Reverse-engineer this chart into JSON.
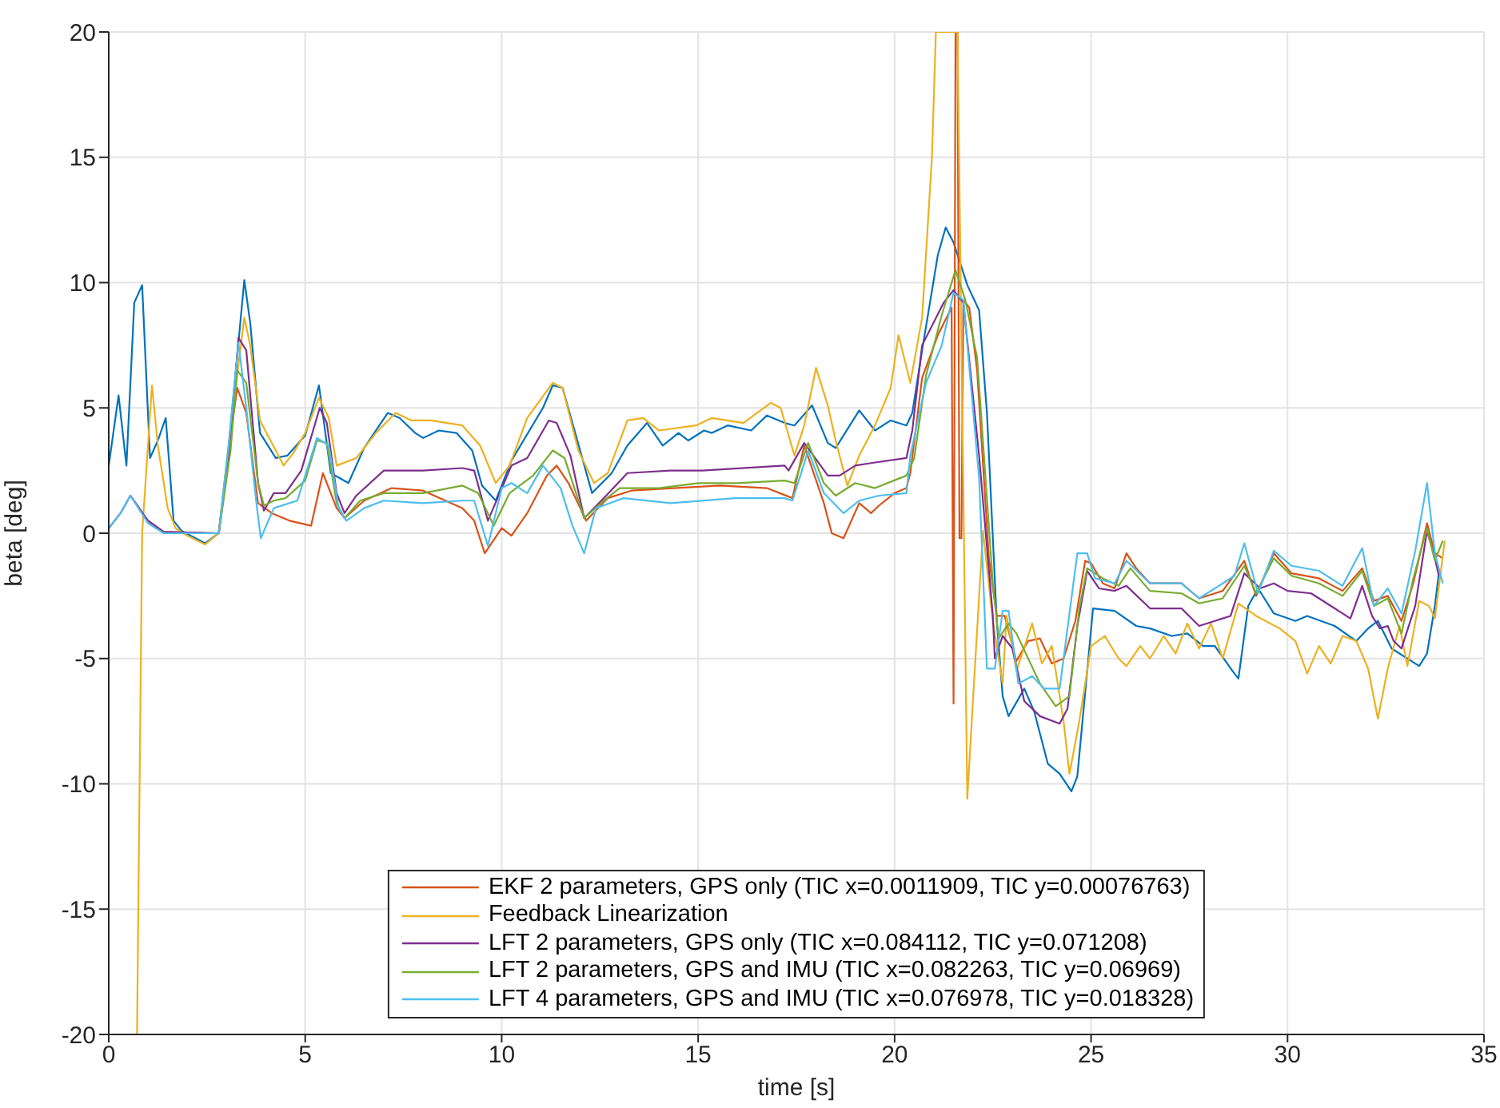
{
  "chart_data": {
    "type": "line",
    "xlabel": "time [s]",
    "ylabel": "beta [deg]",
    "xlim": [
      0,
      35
    ],
    "xticks": [
      0,
      5,
      10,
      15,
      20,
      25,
      30,
      35
    ],
    "ylim": [
      -20,
      20
    ],
    "yticks": [
      -20,
      -15,
      -10,
      -5,
      0,
      5,
      10,
      15,
      20
    ],
    "grid": true,
    "legend": "bottom",
    "marker": "none",
    "line_style": "solid",
    "series": [
      {
        "color": "#0072bd",
        "x": [
          0,
          0.25,
          0.45,
          0.65,
          0.85,
          1.05,
          1.25,
          1.45,
          1.65,
          1.85,
          2.45,
          2.8,
          3.05,
          3.45,
          3.6,
          3.85,
          4.25,
          4.55,
          5.0,
          5.35,
          5.65,
          6.1,
          6.5,
          7.1,
          7.4,
          7.8,
          8.0,
          8.4,
          8.85,
          9.25,
          9.5,
          9.85,
          10.25,
          11.05,
          11.3,
          11.55,
          12.3,
          12.8,
          13.2,
          13.7,
          14.1,
          14.5,
          14.75,
          15.15,
          15.35,
          15.75,
          16.35,
          16.75,
          17.2,
          17.45,
          17.9,
          18.3,
          18.5,
          19.1,
          19.5,
          19.9,
          20.3,
          20.45,
          20.7,
          21.1,
          21.3,
          21.5,
          21.85,
          22.15,
          22.35,
          22.6,
          22.75,
          22.9,
          23.3,
          23.55,
          23.9,
          24.2,
          24.5,
          24.65,
          25.05,
          25.6,
          26.15,
          26.5,
          27.05,
          27.45,
          27.85,
          28.15,
          28.6,
          28.75,
          29.0,
          29.25,
          29.65,
          30.2,
          30.5,
          31.2,
          31.75,
          32.05,
          32.3,
          32.65,
          33.35,
          33.55,
          33.75,
          33.85
        ],
        "values": [
          2.7,
          5.5,
          2.7,
          9.2,
          9.9,
          3.0,
          3.7,
          4.6,
          0.5,
          0.1,
          -0.4,
          0,
          3.4,
          10.1,
          8.4,
          4.0,
          3.0,
          3.1,
          3.9,
          5.9,
          2.4,
          2.0,
          3.4,
          4.8,
          4.6,
          4.0,
          3.8,
          4.1,
          4.0,
          3.3,
          1.9,
          1.3,
          2.9,
          5.0,
          5.9,
          5.8,
          1.6,
          2.4,
          3.5,
          4.4,
          3.5,
          4.0,
          3.7,
          4.1,
          4.0,
          4.3,
          4.1,
          4.7,
          4.4,
          4.3,
          5.1,
          3.6,
          3.4,
          4.9,
          4.1,
          4.5,
          4.3,
          4.8,
          7.3,
          11.1,
          12.2,
          11.6,
          9.9,
          8.9,
          4.8,
          -3.5,
          -6.5,
          -7.3,
          -6.2,
          -7.1,
          -9.2,
          -9.6,
          -10.3,
          -9.7,
          -3.0,
          -3.1,
          -3.7,
          -3.8,
          -4.1,
          -4.0,
          -4.5,
          -4.5,
          -5.5,
          -5.8,
          -2.9,
          -2.2,
          -3.2,
          -3.5,
          -3.3,
          -3.7,
          -4.3,
          -3.8,
          -3.5,
          -4.6,
          -5.3,
          -4.8,
          -2.9,
          -1.6
        ]
      },
      {
        "name": "EKF 2 parameters, GPS only (TIC x=0.0011909, TIC y=0.00076763)",
        "color": "#d95319",
        "x": [
          1.0,
          1.4,
          2.8,
          3.05,
          3.27,
          3.5,
          3.8,
          4.15,
          4.6,
          5.15,
          5.45,
          5.8,
          6.0,
          6.5,
          7.2,
          8.0,
          9.0,
          9.3,
          9.57,
          10.0,
          10.25,
          10.65,
          11.15,
          11.4,
          11.7,
          12.15,
          12.7,
          13.3,
          15.55,
          16.75,
          17.4,
          17.7,
          18.2,
          18.4,
          18.7,
          19.1,
          19.4,
          19.6,
          20.0,
          20.3,
          20.4,
          20.7,
          21.1,
          21.45,
          21.5,
          21.55,
          21.6,
          21.65,
          21.7,
          21.75,
          21.9,
          22.1,
          22.4,
          22.6,
          22.8,
          23.1,
          23.4,
          23.7,
          24.0,
          24.3,
          24.6,
          24.85,
          25.0,
          25.3,
          25.6,
          25.9,
          26.15,
          26.5,
          27.3,
          27.75,
          28.35,
          28.9,
          29.2,
          29.65,
          30.1,
          30.8,
          31.4,
          31.9,
          32.2,
          32.55,
          32.9,
          33.2,
          33.55,
          33.75,
          33.95
        ],
        "values": [
          0.5,
          0.05,
          0,
          3.3,
          5.8,
          4.8,
          1.2,
          0.8,
          0.5,
          0.3,
          2.4,
          1.0,
          0.6,
          1.3,
          1.8,
          1.7,
          1.0,
          0.5,
          -0.8,
          0.2,
          -0.1,
          0.8,
          2.3,
          2.7,
          2.0,
          0.5,
          1.4,
          1.7,
          1.9,
          1.8,
          1.4,
          3.5,
          1.2,
          0,
          -0.2,
          1.2,
          0.8,
          1.1,
          1.6,
          1.8,
          2.4,
          6.2,
          7.9,
          9.0,
          -6.8,
          20,
          20,
          -0.2,
          -0.2,
          9.3,
          9.0,
          6.5,
          -1.0,
          -3.3,
          -3.3,
          -5.1,
          -4.3,
          -4.2,
          -5.2,
          -5.0,
          -3.5,
          -1.1,
          -1.2,
          -2.0,
          -2.2,
          -0.8,
          -1.4,
          -2.0,
          -2.0,
          -2.6,
          -2.3,
          -1.1,
          -2.5,
          -0.8,
          -1.6,
          -1.8,
          -2.3,
          -1.4,
          -2.7,
          -2.5,
          -3.5,
          -2.0,
          0.4,
          -0.8,
          -1.0
        ]
      },
      {
        "name": "Feedback Linearization",
        "color": "#edb120",
        "x": [
          0.72,
          0.85,
          1.1,
          1.25,
          1.5,
          1.7,
          2.0,
          2.45,
          2.8,
          3.05,
          3.45,
          3.6,
          3.85,
          4.45,
          4.7,
          5.0,
          5.35,
          5.6,
          5.8,
          6.3,
          6.8,
          7.3,
          7.7,
          8.2,
          9.0,
          9.45,
          9.85,
          10.2,
          10.65,
          11.3,
          11.55,
          11.95,
          12.35,
          12.7,
          13.2,
          13.6,
          14.0,
          14.95,
          15.35,
          16.15,
          16.85,
          17.1,
          17.45,
          17.7,
          18.0,
          18.3,
          18.5,
          18.8,
          19.1,
          19.5,
          19.9,
          20.1,
          20.4,
          20.7,
          20.95,
          21.05,
          21.6,
          21.85,
          22.0,
          22.25,
          22.5,
          22.75,
          22.85,
          23.1,
          23.5,
          23.75,
          24.0,
          24.3,
          24.45,
          24.7,
          25.0,
          25.35,
          25.7,
          25.9,
          26.25,
          26.5,
          26.85,
          27.15,
          27.45,
          27.75,
          28.05,
          28.35,
          28.75,
          29.2,
          29.8,
          30.2,
          30.5,
          30.8,
          31.1,
          31.4,
          31.75,
          32.05,
          32.3,
          32.55,
          32.85,
          33.05,
          33.35,
          33.6,
          33.75,
          34.0
        ],
        "values": [
          -20,
          0,
          5.9,
          3.5,
          1.0,
          0.2,
          -0.1,
          -0.45,
          0,
          3.5,
          8.6,
          7.5,
          4.5,
          2.7,
          3.2,
          4.0,
          5.4,
          4.6,
          2.7,
          3.0,
          4.0,
          4.8,
          4.5,
          4.5,
          4.3,
          3.5,
          2.0,
          2.7,
          4.6,
          6.0,
          5.8,
          3.3,
          2.0,
          2.4,
          4.5,
          4.6,
          4.1,
          4.3,
          4.6,
          4.4,
          5.2,
          5.0,
          3.1,
          4.3,
          6.6,
          5.1,
          3.7,
          1.9,
          3.1,
          4.3,
          5.8,
          7.9,
          6.0,
          8.6,
          15,
          20,
          20,
          -10.6,
          -6.5,
          0.1,
          -3.5,
          -6.0,
          -3.3,
          -5.5,
          -3.6,
          -5.2,
          -4.5,
          -7.5,
          -9.6,
          -7.5,
          -4.5,
          -4.1,
          -5.0,
          -5.3,
          -4.5,
          -5.0,
          -4.1,
          -4.8,
          -3.6,
          -4.6,
          -3.6,
          -5.0,
          -2.8,
          -3.3,
          -3.8,
          -4.3,
          -5.6,
          -4.5,
          -5.2,
          -4.1,
          -4.3,
          -5.4,
          -7.4,
          -5.4,
          -3.7,
          -5.3,
          -2.7,
          -2.9,
          -3.4,
          -0.3
        ]
      },
      {
        "name": "LFT 2 parameters, GPS only (TIC x=0.084112, TIC y=0.071208)",
        "color": "#7e2f8e",
        "x": [
          0,
          0.3,
          0.55,
          1.0,
          1.4,
          2.8,
          3.1,
          3.3,
          3.5,
          3.8,
          3.95,
          4.2,
          4.5,
          4.9,
          5.37,
          5.55,
          5.8,
          6.0,
          6.3,
          7.0,
          8.0,
          9.0,
          9.3,
          9.65,
          10.25,
          10.65,
          11.2,
          11.4,
          11.75,
          12.1,
          12.6,
          13.2,
          14.3,
          15.1,
          17.2,
          17.3,
          17.7,
          18.3,
          18.6,
          19.0,
          19.4,
          20.3,
          20.45,
          20.7,
          21.25,
          21.5,
          21.75,
          22.15,
          22.5,
          22.55,
          22.75,
          23.0,
          23.3,
          23.7,
          24.2,
          24.4,
          24.65,
          24.9,
          25.2,
          25.6,
          25.9,
          26.5,
          27.3,
          27.75,
          28.55,
          28.9,
          29.3,
          29.65,
          30.0,
          30.6,
          31.2,
          31.6,
          31.9,
          32.15,
          32.35,
          32.55,
          32.7,
          32.9,
          33.25,
          33.55,
          33.75,
          33.85
        ],
        "values": [
          0.2,
          0.8,
          1.5,
          0.5,
          0.05,
          0,
          3.5,
          7.8,
          7.3,
          2.0,
          0.9,
          1.6,
          1.6,
          2.5,
          5.0,
          4.4,
          1.6,
          0.8,
          1.5,
          2.5,
          2.5,
          2.6,
          2.5,
          0.5,
          2.7,
          3.0,
          4.5,
          4.4,
          3.1,
          0.6,
          1.4,
          2.4,
          2.5,
          2.5,
          2.7,
          2.5,
          3.6,
          2.3,
          2.3,
          2.7,
          2.8,
          3.0,
          4.1,
          7.5,
          9.2,
          9.7,
          9.2,
          3.1,
          -3.3,
          -5.0,
          -4.1,
          -4.6,
          -6.7,
          -7.3,
          -7.6,
          -7.0,
          -3.7,
          -1.5,
          -2.2,
          -2.3,
          -2.1,
          -3.0,
          -3.0,
          -3.7,
          -3.3,
          -1.6,
          -2.2,
          -2.0,
          -2.3,
          -2.4,
          -3.0,
          -3.4,
          -2.1,
          -3.3,
          -3.8,
          -3.7,
          -4.3,
          -4.6,
          -2.9,
          0.1,
          -1.0,
          -1.7
        ]
      },
      {
        "name": "LFT 2 parameters, GPS and IMU (TIC x=0.082263, TIC y=0.06969)",
        "color": "#77ac30",
        "x": [
          1.4,
          2.8,
          3.1,
          3.27,
          3.5,
          3.8,
          3.95,
          4.2,
          4.5,
          5.0,
          5.3,
          5.55,
          5.8,
          6.0,
          6.4,
          7.0,
          8.0,
          9.0,
          9.4,
          9.8,
          10.2,
          10.8,
          11.3,
          11.6,
          12.1,
          12.6,
          13.0,
          14.0,
          15.0,
          16.0,
          17.2,
          17.45,
          17.8,
          18.2,
          18.5,
          19.0,
          19.5,
          20.3,
          20.5,
          20.8,
          21.2,
          21.55,
          21.8,
          22.1,
          22.5,
          22.65,
          22.9,
          23.1,
          23.7,
          24.1,
          24.45,
          24.7,
          24.9,
          25.3,
          25.7,
          26.0,
          26.5,
          27.3,
          27.75,
          28.35,
          28.9,
          29.2,
          29.65,
          30.1,
          30.8,
          31.4,
          31.9,
          32.2,
          32.55,
          32.9,
          33.2,
          33.55,
          33.75,
          33.95
        ],
        "values": [
          0,
          0,
          3.3,
          6.5,
          6.0,
          2.0,
          1.1,
          1.3,
          1.4,
          2.1,
          3.7,
          3.6,
          1.2,
          0.6,
          1.3,
          1.6,
          1.6,
          1.9,
          1.6,
          0.3,
          1.6,
          2.3,
          3.3,
          3.0,
          0.6,
          1.3,
          1.8,
          1.8,
          2.0,
          2.0,
          2.1,
          2.0,
          3.6,
          2.0,
          1.5,
          2.0,
          1.8,
          2.3,
          3.0,
          6.3,
          8.7,
          10.5,
          9.3,
          7.0,
          -2.0,
          -4.2,
          -3.6,
          -4.0,
          -6.0,
          -6.9,
          -6.5,
          -3.0,
          -1.4,
          -1.8,
          -2.1,
          -1.4,
          -2.3,
          -2.4,
          -2.8,
          -2.6,
          -1.3,
          -2.4,
          -1.0,
          -1.7,
          -2.0,
          -2.5,
          -1.5,
          -2.9,
          -2.6,
          -4.0,
          -1.8,
          0.2,
          -1.1,
          -0.3
        ]
      },
      {
        "name": "LFT 4 parameters, GPS and IMU (TIC x=0.076978, TIC y=0.018328)",
        "color": "#4dbeee",
        "x": [
          0,
          0.3,
          0.55,
          1.0,
          1.4,
          2.8,
          3.05,
          3.3,
          3.5,
          3.75,
          3.87,
          4.2,
          4.8,
          5.3,
          5.6,
          5.85,
          6.05,
          6.5,
          7.0,
          8.0,
          9.0,
          9.3,
          9.65,
          10.0,
          10.25,
          10.65,
          11.05,
          11.5,
          11.8,
          12.1,
          12.4,
          13.1,
          14.3,
          15.95,
          17.2,
          17.4,
          17.8,
          18.2,
          18.7,
          19.1,
          19.6,
          20.3,
          20.4,
          20.8,
          21.2,
          21.5,
          21.75,
          22.15,
          22.35,
          22.55,
          22.75,
          22.9,
          23.15,
          23.5,
          23.8,
          24.2,
          24.65,
          24.9,
          25.1,
          25.6,
          25.9,
          26.5,
          27.3,
          27.75,
          28.35,
          28.65,
          28.9,
          29.25,
          29.65,
          30.1,
          30.8,
          31.4,
          31.9,
          32.2,
          32.55,
          32.9,
          33.25,
          33.55,
          33.75,
          33.95
        ],
        "values": [
          0.2,
          0.8,
          1.5,
          0.4,
          0,
          0,
          3.5,
          7.6,
          5.0,
          1.3,
          -0.2,
          1.0,
          1.3,
          3.8,
          3.5,
          1.0,
          0.5,
          1.0,
          1.3,
          1.2,
          1.3,
          1.3,
          -0.5,
          1.8,
          2.0,
          1.6,
          2.7,
          1.8,
          0.3,
          -0.8,
          1.0,
          1.4,
          1.2,
          1.4,
          1.4,
          1.3,
          3.3,
          1.6,
          0.8,
          1.3,
          1.5,
          1.6,
          3.1,
          6.0,
          7.5,
          9.6,
          9.3,
          2.2,
          -5.4,
          -5.4,
          -3.1,
          -3.1,
          -6.0,
          -5.7,
          -6.2,
          -6.2,
          -0.8,
          -0.8,
          -1.8,
          -2.0,
          -1.1,
          -2.0,
          -2.0,
          -2.6,
          -2.0,
          -1.7,
          -0.4,
          -2.4,
          -0.7,
          -1.3,
          -1.5,
          -2.1,
          -0.6,
          -2.9,
          -2.2,
          -3.2,
          -0.7,
          2.0,
          -0.8,
          -2.0
        ]
      }
    ]
  }
}
